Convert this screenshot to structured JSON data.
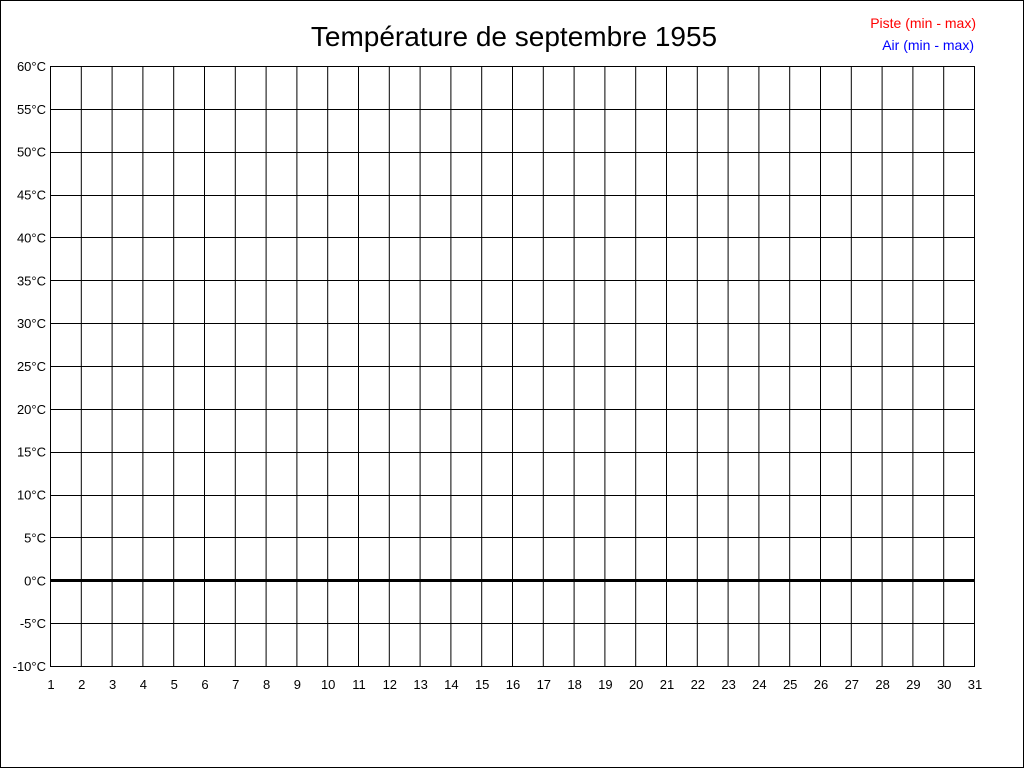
{
  "chart_data": {
    "type": "line",
    "title": "Température de septembre 1955",
    "xlabel": "",
    "ylabel": "",
    "x_ticks": [
      "1",
      "2",
      "3",
      "4",
      "5",
      "6",
      "7",
      "8",
      "9",
      "10",
      "11",
      "12",
      "13",
      "14",
      "15",
      "16",
      "17",
      "18",
      "19",
      "20",
      "21",
      "22",
      "23",
      "24",
      "25",
      "26",
      "27",
      "28",
      "29",
      "30",
      "31"
    ],
    "y_ticks": [
      "-10°C",
      "-5°C",
      "0°C",
      "5°C",
      "10°C",
      "15°C",
      "20°C",
      "25°C",
      "30°C",
      "35°C",
      "40°C",
      "45°C",
      "50°C",
      "55°C",
      "60°C"
    ],
    "xlim": [
      1,
      31
    ],
    "ylim": [
      -10,
      60
    ],
    "y_step": 5,
    "grid": true,
    "zero_line_emphasized": true,
    "legend_position": "top-right",
    "series": [
      {
        "name": "Piste (min - max)",
        "color": "#ff0000",
        "values": []
      },
      {
        "name": "Air (min - max)",
        "color": "#0000ff",
        "values": []
      }
    ]
  }
}
